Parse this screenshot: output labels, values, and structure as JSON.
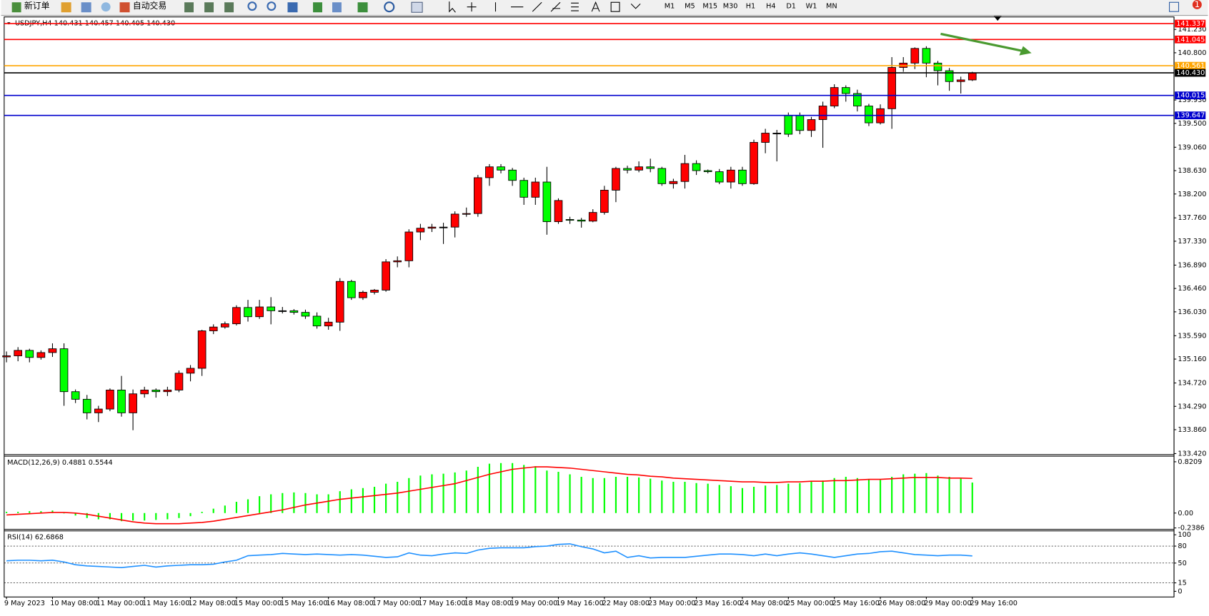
{
  "toolbar": {
    "new_order": "新订单",
    "auto_trading": "自动交易",
    "timeframes": [
      "M1",
      "M5",
      "M15",
      "M30",
      "H1",
      "H4",
      "D1",
      "W1",
      "MN"
    ],
    "notifications": 1
  },
  "chart_data": [
    {
      "type": "candlestick",
      "title": "USDJPY,H4  140.431 140.457 140.405 140.430",
      "categories": [
        "9 May 2023",
        null,
        null,
        null,
        "10 May 08:00",
        null,
        null,
        null,
        "11 May 00:00",
        null,
        null,
        null,
        "11 May 16:00",
        null,
        null,
        null,
        "12 May 08:00",
        null,
        null,
        null,
        "15 May 00:00",
        null,
        null,
        null,
        "15 May 16:00",
        null,
        null,
        null,
        "16 May 08:00",
        null,
        null,
        null,
        "17 May 00:00",
        null,
        null,
        null,
        "17 May 16:00",
        null,
        null,
        null,
        "18 May 08:00",
        null,
        null,
        null,
        "19 May 00:00",
        null,
        null,
        null,
        "19 May 16:00",
        null,
        null,
        null,
        "22 May 08:00",
        null,
        null,
        null,
        "23 May 00:00",
        null,
        null,
        null,
        "23 May 16:00",
        null,
        null,
        null,
        "24 May 08:00",
        null,
        null,
        null,
        "25 May 00:00",
        null,
        null,
        null,
        "25 May 16:00",
        null,
        null,
        null,
        "26 May 08:00",
        null,
        null,
        null,
        "29 May 00:00",
        null,
        null,
        null,
        "29 May 16:00"
      ],
      "open": [
        135.2,
        135.22,
        135.32,
        135.19,
        135.28,
        135.35,
        134.56,
        134.42,
        134.17,
        134.24,
        134.59,
        134.17,
        134.52,
        134.59,
        134.56,
        134.59,
        134.9,
        134.99,
        135.68,
        135.75,
        135.81,
        136.11,
        135.94,
        136.12,
        136.05,
        136.05,
        136.02,
        135.95,
        135.77,
        135.84,
        136.59,
        136.29,
        136.39,
        136.43,
        136.95,
        136.97,
        137.5,
        137.57,
        137.59,
        137.59,
        137.83,
        137.84,
        138.5,
        138.7,
        138.64,
        138.45,
        138.14,
        138.42,
        137.69,
        137.73,
        137.72,
        137.7,
        137.86,
        138.27,
        138.67,
        138.64,
        138.7,
        138.67,
        138.39,
        138.43,
        138.76,
        138.63,
        138.61,
        138.42,
        138.64,
        138.39,
        139.15,
        139.32,
        139.65,
        139.65,
        139.37,
        139.57,
        139.82,
        140.16,
        140.05,
        139.82,
        139.51,
        139.77,
        140.53,
        140.61,
        140.88,
        140.61,
        140.47,
        140.27,
        140.3
      ],
      "high": [
        135.3,
        135.38,
        135.35,
        135.32,
        135.45,
        135.45,
        134.6,
        134.5,
        134.3,
        134.62,
        134.85,
        134.6,
        134.65,
        134.62,
        134.65,
        134.95,
        135.05,
        135.7,
        135.8,
        135.85,
        136.15,
        136.25,
        136.25,
        136.3,
        136.12,
        136.08,
        136.07,
        136.02,
        135.92,
        136.65,
        136.62,
        136.42,
        136.45,
        137.0,
        137.05,
        137.55,
        137.65,
        137.65,
        137.67,
        137.88,
        137.95,
        138.55,
        138.75,
        138.75,
        138.68,
        138.5,
        138.5,
        138.7,
        138.12,
        137.78,
        137.76,
        137.92,
        138.35,
        138.7,
        138.72,
        138.8,
        138.85,
        138.7,
        138.48,
        138.92,
        138.82,
        138.65,
        138.66,
        138.7,
        138.7,
        139.2,
        139.4,
        139.38,
        139.7,
        139.7,
        139.62,
        139.9,
        140.22,
        140.2,
        140.12,
        139.86,
        139.85,
        140.72,
        140.72,
        140.9,
        140.92,
        140.65,
        140.52,
        140.36,
        140.45
      ],
      "low": [
        135.1,
        135.12,
        135.1,
        135.15,
        135.2,
        134.3,
        134.35,
        134.05,
        134.0,
        134.2,
        134.1,
        133.85,
        134.45,
        134.45,
        134.48,
        134.55,
        134.75,
        134.85,
        135.62,
        135.72,
        135.78,
        135.85,
        135.9,
        135.8,
        136.0,
        135.98,
        135.9,
        135.72,
        135.7,
        135.68,
        136.25,
        136.25,
        136.35,
        136.4,
        136.85,
        136.85,
        137.35,
        137.5,
        137.28,
        137.4,
        137.78,
        137.78,
        138.35,
        138.58,
        138.35,
        138.0,
        138.0,
        137.45,
        137.65,
        137.65,
        137.58,
        137.68,
        137.82,
        138.05,
        138.58,
        138.6,
        138.6,
        138.35,
        138.3,
        138.3,
        138.55,
        138.58,
        138.38,
        138.3,
        138.35,
        138.37,
        138.95,
        138.8,
        139.25,
        139.3,
        139.25,
        139.05,
        139.78,
        139.9,
        139.72,
        139.45,
        139.48,
        139.4,
        140.45,
        140.5,
        140.35,
        140.2,
        140.1,
        140.05,
        140.28
      ],
      "close": [
        135.22,
        135.32,
        135.19,
        135.28,
        135.35,
        134.56,
        134.42,
        134.17,
        134.24,
        134.59,
        134.17,
        134.52,
        134.59,
        134.56,
        134.59,
        134.9,
        134.99,
        135.68,
        135.75,
        135.81,
        136.11,
        135.94,
        136.12,
        136.05,
        136.05,
        136.02,
        135.95,
        135.77,
        135.84,
        136.59,
        136.29,
        136.39,
        136.43,
        136.95,
        136.97,
        137.5,
        137.57,
        137.59,
        137.59,
        137.83,
        137.84,
        138.5,
        138.7,
        138.64,
        138.45,
        138.14,
        138.42,
        137.69,
        138.08,
        137.72,
        137.7,
        137.86,
        138.27,
        138.67,
        138.64,
        138.7,
        138.67,
        138.39,
        138.43,
        138.76,
        138.63,
        138.61,
        138.42,
        138.64,
        138.39,
        139.15,
        139.32,
        139.32,
        139.3,
        139.37,
        139.57,
        139.82,
        140.16,
        140.05,
        139.82,
        139.51,
        139.77,
        140.53,
        140.61,
        140.88,
        140.61,
        140.47,
        140.27,
        140.3,
        140.43
      ],
      "up_color": "#ff0000",
      "down_color": "#00ff00",
      "levels": [
        {
          "value": 141.337,
          "color": "#ff0000"
        },
        {
          "value": 141.045,
          "color": "#ff0000"
        },
        {
          "value": 140.561,
          "color": "#ffa500"
        },
        {
          "value": 140.43,
          "label": "140.430",
          "color": "#000000"
        },
        {
          "value": 140.015,
          "color": "#0000cd"
        },
        {
          "value": 139.647,
          "color": "#0000cd"
        }
      ],
      "ylim": [
        133.4,
        141.46
      ],
      "yticks": [
        {
          "value": 141.23,
          "label": "141.230"
        },
        {
          "value": 140.8,
          "label": "140.800"
        },
        {
          "value": 139.93,
          "label": "139.930"
        },
        {
          "value": 139.5,
          "label": "139.500"
        },
        {
          "value": 139.06,
          "label": "139.060"
        },
        {
          "value": 138.63,
          "label": "138.630"
        },
        {
          "value": 138.2,
          "label": "138.200"
        },
        {
          "value": 137.76,
          "label": "137.760"
        },
        {
          "value": 137.33,
          "label": "137.330"
        },
        {
          "value": 136.89,
          "label": "136.890"
        },
        {
          "value": 136.46,
          "label": "136.460"
        },
        {
          "value": 136.03,
          "label": "136.030"
        },
        {
          "value": 135.59,
          "label": "135.590"
        },
        {
          "value": 135.16,
          "label": "135.160"
        },
        {
          "value": 134.72,
          "label": "134.720"
        },
        {
          "value": 134.29,
          "label": "134.290"
        },
        {
          "value": 133.86,
          "label": "133.860"
        },
        {
          "value": 133.42,
          "label": "133.420"
        }
      ]
    },
    {
      "type": "macd",
      "title": "MACD(12,26,9) 0.4881 0.5544",
      "series": [
        {
          "name": "MACD",
          "color": "#00ff00",
          "values": [
            0.02,
            0.02,
            0.03,
            0.03,
            0.04,
            0.0,
            -0.04,
            -0.08,
            -0.1,
            -0.1,
            -0.13,
            -0.12,
            -0.12,
            -0.11,
            -0.1,
            -0.08,
            -0.05,
            0.02,
            0.07,
            0.12,
            0.18,
            0.22,
            0.27,
            0.3,
            0.32,
            0.33,
            0.32,
            0.3,
            0.3,
            0.35,
            0.38,
            0.4,
            0.42,
            0.47,
            0.5,
            0.56,
            0.6,
            0.62,
            0.63,
            0.65,
            0.68,
            0.74,
            0.79,
            0.8,
            0.8,
            0.77,
            0.75,
            0.68,
            0.66,
            0.62,
            0.58,
            0.56,
            0.56,
            0.58,
            0.58,
            0.57,
            0.55,
            0.52,
            0.5,
            0.5,
            0.48,
            0.47,
            0.45,
            0.43,
            0.4,
            0.42,
            0.44,
            0.45,
            0.47,
            0.48,
            0.5,
            0.52,
            0.56,
            0.58,
            0.56,
            0.54,
            0.53,
            0.58,
            0.62,
            0.63,
            0.64,
            0.6,
            0.58,
            0.55,
            0.4881
          ]
        },
        {
          "name": "Signal",
          "color": "#ff0000",
          "values": [
            -0.03,
            -0.02,
            -0.01,
            0.0,
            0.01,
            0.01,
            0.0,
            -0.02,
            -0.05,
            -0.08,
            -0.11,
            -0.14,
            -0.16,
            -0.17,
            -0.17,
            -0.17,
            -0.16,
            -0.15,
            -0.13,
            -0.1,
            -0.07,
            -0.04,
            -0.01,
            0.02,
            0.05,
            0.09,
            0.13,
            0.16,
            0.19,
            0.22,
            0.24,
            0.26,
            0.28,
            0.3,
            0.32,
            0.35,
            0.38,
            0.41,
            0.44,
            0.47,
            0.52,
            0.57,
            0.62,
            0.66,
            0.7,
            0.72,
            0.74,
            0.74,
            0.73,
            0.72,
            0.7,
            0.68,
            0.66,
            0.64,
            0.62,
            0.61,
            0.59,
            0.58,
            0.56,
            0.55,
            0.54,
            0.53,
            0.52,
            0.51,
            0.5,
            0.5,
            0.49,
            0.49,
            0.5,
            0.5,
            0.51,
            0.51,
            0.52,
            0.52,
            0.53,
            0.54,
            0.54,
            0.55,
            0.56,
            0.57,
            0.57,
            0.57,
            0.56,
            0.56,
            0.5544
          ]
        }
      ],
      "ylim": [
        -0.26,
        0.91
      ],
      "yticks": [
        0.8209,
        {
          "value": 0,
          "label": "0.00"
        },
        -0.2386
      ]
    },
    {
      "type": "rsi",
      "title": "RSI(14) 62.6868",
      "series": [
        {
          "name": "RSI",
          "color": "#1e90ff",
          "values": [
            54,
            55,
            55,
            54,
            55,
            52,
            47,
            45,
            44,
            43,
            42,
            44,
            46,
            43,
            45,
            46,
            47,
            47,
            48,
            52,
            55,
            63,
            64,
            65,
            67,
            66,
            65,
            66,
            65,
            64,
            65,
            64,
            62,
            60,
            61,
            68,
            64,
            63,
            66,
            68,
            67,
            73,
            76,
            77,
            77,
            77,
            79,
            80,
            83,
            84,
            79,
            75,
            68,
            71,
            60,
            63,
            59,
            60,
            60,
            60,
            62,
            64,
            66,
            66,
            65,
            63,
            66,
            63,
            66,
            68,
            66,
            63,
            60,
            63,
            66,
            67,
            70,
            71,
            68,
            65,
            64,
            63,
            64,
            64,
            62.6868
          ]
        }
      ],
      "levels": [
        80,
        50,
        15
      ],
      "ylim": [
        -10,
        107
      ],
      "yticks": [
        100,
        80,
        50,
        15,
        0
      ]
    }
  ]
}
